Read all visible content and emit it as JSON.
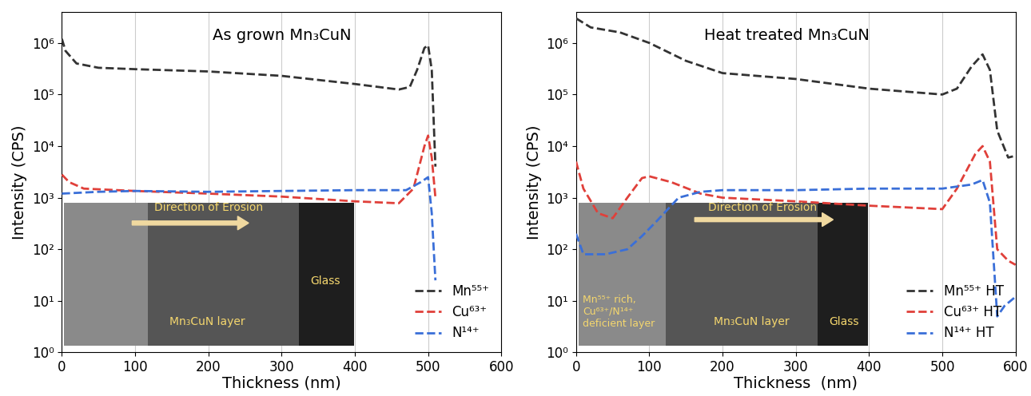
{
  "chart_data": [
    {
      "type": "line",
      "title": "As grown Mn₃CuN",
      "xlabel": "Thickness (nm)",
      "ylabel": "Intensity (CPS)",
      "xlim": [
        0,
        600
      ],
      "xticks": [
        0,
        100,
        200,
        300,
        400,
        500,
        600
      ],
      "ylim": [
        1,
        4000000
      ],
      "yticks": [
        {
          "value": 1,
          "label": "10⁰"
        },
        {
          "value": 10,
          "label": "10¹"
        },
        {
          "value": 100,
          "label": "10²"
        },
        {
          "value": 1000,
          "label": "10³"
        },
        {
          "value": 10000,
          "label": "10⁴"
        },
        {
          "value": 100000,
          "label": "10⁵"
        },
        {
          "value": 1000000,
          "label": "10⁶"
        }
      ],
      "log": "y",
      "grid": true,
      "legend": "lower right",
      "line_style": "dashed",
      "annotations": [
        "Direction of Erosion",
        "Mn₃CuN layer",
        "Glass"
      ],
      "series": [
        {
          "name": "Mn⁵⁵⁺",
          "color": "#333333",
          "x": [
            0,
            5,
            20,
            50,
            100,
            200,
            300,
            400,
            460,
            475,
            485,
            495,
            500,
            505,
            510
          ],
          "values": [
            1200000,
            700000,
            400000,
            330000,
            310000,
            280000,
            230000,
            160000,
            125000,
            140000,
            300000,
            800000,
            900000,
            300000,
            4000
          ]
        },
        {
          "name": "Cu⁶³⁺",
          "color": "#e0403a",
          "x": [
            0,
            10,
            30,
            100,
            200,
            300,
            400,
            460,
            480,
            495,
            500,
            505,
            510
          ],
          "values": [
            2800,
            2000,
            1500,
            1350,
            1200,
            1050,
            850,
            780,
            1500,
            10000,
            16000,
            6000,
            1000
          ]
        },
        {
          "name": "N¹⁴⁺",
          "color": "#3a6fd8",
          "x": [
            0,
            50,
            100,
            200,
            300,
            400,
            470,
            490,
            500,
            505,
            510
          ],
          "values": [
            1200,
            1300,
            1350,
            1300,
            1350,
            1400,
            1400,
            2000,
            2500,
            500,
            25
          ]
        }
      ]
    },
    {
      "type": "line",
      "title": "Heat treated Mn₃CuN",
      "xlabel": "Thickness  (nm)",
      "ylabel": "Intensity (CPS)",
      "xlim": [
        0,
        600
      ],
      "xticks": [
        0,
        100,
        200,
        300,
        400,
        500,
        600
      ],
      "ylim": [
        1,
        4000000
      ],
      "yticks": [
        {
          "value": 1,
          "label": "10⁰"
        },
        {
          "value": 10,
          "label": "10¹"
        },
        {
          "value": 100,
          "label": "10²"
        },
        {
          "value": 1000,
          "label": "10³"
        },
        {
          "value": 10000,
          "label": "10⁴"
        },
        {
          "value": 100000,
          "label": "10⁵"
        },
        {
          "value": 1000000,
          "label": "10⁶"
        }
      ],
      "log": "y",
      "grid": true,
      "legend": "lower right",
      "line_style": "dashed",
      "annotations": [
        "Direction of Erosion",
        "Mn⁵⁵⁺ rich,\nCu⁶³⁺/N¹⁴⁺\ndeficient layer",
        "Mn₃CuN layer",
        "Glass"
      ],
      "series": [
        {
          "name": "Mn⁵⁵⁺ HT",
          "color": "#333333",
          "x": [
            0,
            20,
            60,
            100,
            150,
            200,
            300,
            400,
            500,
            520,
            540,
            555,
            565,
            575,
            590,
            600
          ],
          "values": [
            3000000,
            2000000,
            1600000,
            1000000,
            450000,
            260000,
            200000,
            130000,
            100000,
            130000,
            350000,
            600000,
            300000,
            20000,
            6000,
            6500
          ]
        },
        {
          "name": "Cu⁶³⁺ HT",
          "color": "#e0403a",
          "x": [
            0,
            10,
            30,
            50,
            70,
            90,
            100,
            130,
            170,
            200,
            300,
            400,
            500,
            520,
            545,
            555,
            565,
            575,
            590,
            600
          ],
          "values": [
            5000,
            1500,
            500,
            400,
            1000,
            2400,
            2600,
            2000,
            1200,
            1000,
            850,
            700,
            600,
            1500,
            7000,
            10000,
            5000,
            100,
            60,
            50
          ]
        },
        {
          "name": "N¹⁴⁺ HT",
          "color": "#3a6fd8",
          "x": [
            0,
            10,
            40,
            70,
            90,
            110,
            140,
            170,
            200,
            300,
            400,
            500,
            540,
            555,
            565,
            575,
            585,
            600
          ],
          "values": [
            200,
            80,
            80,
            100,
            180,
            350,
            1000,
            1300,
            1400,
            1400,
            1500,
            1500,
            1800,
            2200,
            800,
            5,
            8,
            12
          ]
        }
      ]
    }
  ]
}
